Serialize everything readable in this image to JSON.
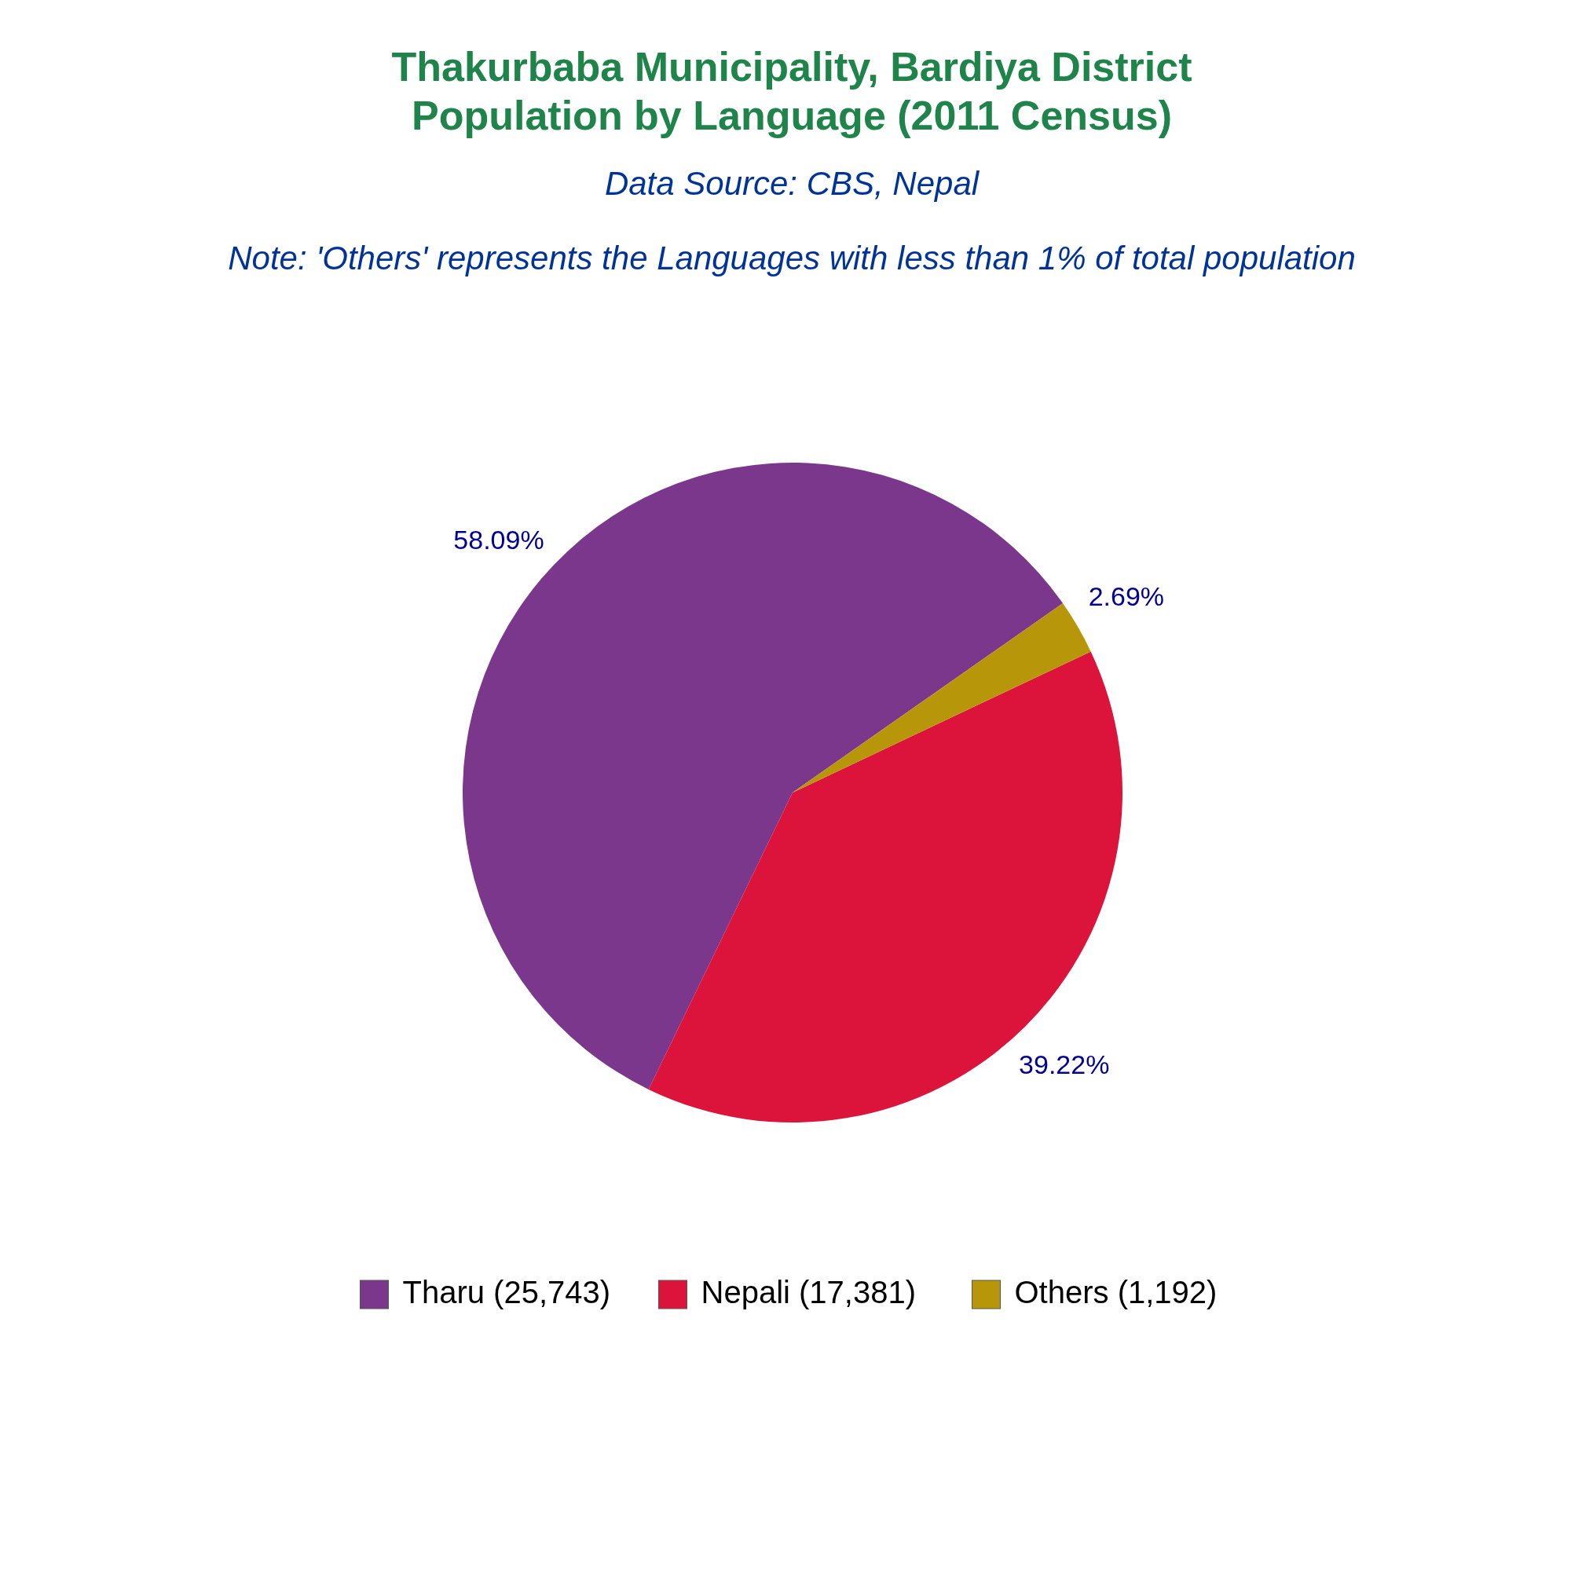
{
  "chart_data": {
    "type": "pie",
    "title": "Thakurbaba Municipality, Bardiya District\nPopulation by Language (2011 Census)",
    "subtitle": "Data Source: CBS, Nepal",
    "annotations": [
      "Note: 'Others' represents the Languages with less than 1% of total population"
    ],
    "categories": [
      "Tharu (25,743)",
      "Nepali (17,381)",
      "Others (1,192)"
    ],
    "values": [
      58.09,
      39.22,
      2.69
    ],
    "value_labels": [
      "58.09%",
      "39.22%",
      "2.69%"
    ],
    "colors": [
      "#7b378b",
      "#dc143c",
      "#b8960a"
    ],
    "legend": "bottom"
  }
}
